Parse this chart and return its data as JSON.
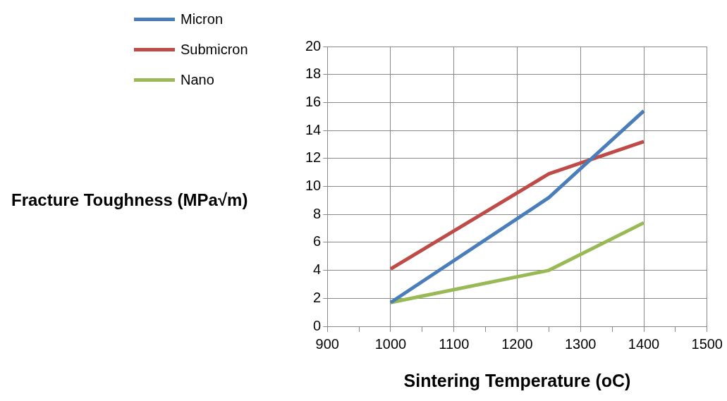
{
  "chart_data": {
    "type": "line",
    "xlabel": "Sintering Temperature (oC)",
    "ylabel": "Fracture Toughness (MPa√m)",
    "x": [
      1000,
      1250,
      1400
    ],
    "series": [
      {
        "name": "Micron",
        "color": "#4a7ebb",
        "values": [
          1.7,
          9.2,
          15.4
        ]
      },
      {
        "name": "Submicron",
        "color": "#be4b48",
        "values": [
          4.1,
          10.9,
          13.2
        ]
      },
      {
        "name": "Nano",
        "color": "#98b954",
        "values": [
          1.7,
          4.0,
          7.4
        ]
      }
    ],
    "xlim": [
      900,
      1500
    ],
    "xticks": [
      900,
      {
        "value": 950,
        "label": null
      },
      1000,
      {
        "value": 1050,
        "label": null
      },
      1100,
      {
        "value": 1150,
        "label": null
      },
      1200,
      {
        "value": 1250,
        "label": null
      },
      1300,
      {
        "value": 1350,
        "label": null
      },
      1400,
      {
        "value": 1450,
        "label": null
      },
      1500
    ],
    "ylim": [
      0,
      20
    ],
    "yticks": [
      0,
      2,
      4,
      6,
      8,
      10,
      12,
      14,
      16,
      18,
      20
    ],
    "grid": true,
    "legend": "top left",
    "marker": "none",
    "line_style": "solid"
  }
}
